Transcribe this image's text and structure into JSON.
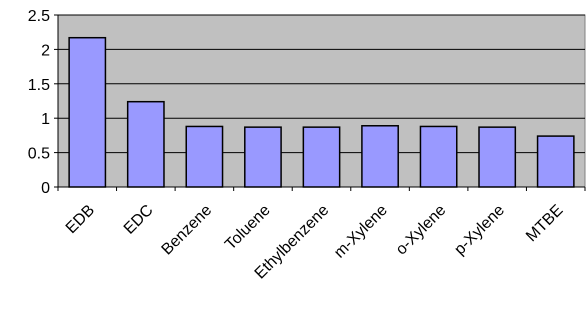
{
  "chart_data": {
    "type": "bar",
    "title": "",
    "xlabel": "",
    "ylabel": "",
    "categories": [
      "EDB",
      "EDC",
      "Benzene",
      "Toluene",
      "Ethylbenzene",
      "m-Xylene",
      "o-Xylene",
      "p-Xylene",
      "MTBE"
    ],
    "values": [
      2.17,
      1.24,
      0.88,
      0.87,
      0.87,
      0.89,
      0.88,
      0.87,
      0.74
    ],
    "ylim": [
      0,
      2.5
    ],
    "yticks": [
      "0",
      "0.5",
      "1",
      "1.5",
      "2",
      "2.5"
    ],
    "grid": true,
    "legend": false,
    "colors": {
      "plot_background": "#c0c0c0",
      "bar_fill": "#9999ff",
      "bar_stroke": "#000000",
      "gridline": "#000000"
    }
  }
}
